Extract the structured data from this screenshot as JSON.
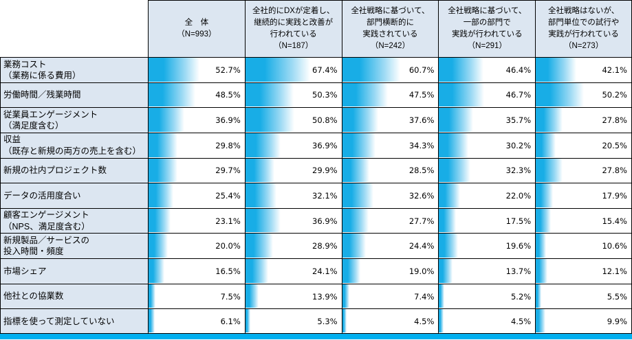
{
  "colors": {
    "header_bg": "#dce6f1",
    "border": "#000000",
    "bar_solid": "#18ade6",
    "bar_mid": "#9ddaf4",
    "bar_end": "#ffffff",
    "bottom_band": "#00b0f0"
  },
  "table": {
    "columns": [
      {
        "lines": [
          "全　体",
          "（N=993）"
        ]
      },
      {
        "lines": [
          "全社的にDXが定着し、",
          "継続的に実践と改善が",
          "行われている",
          "（N=187）"
        ]
      },
      {
        "lines": [
          "全社戦略に基づいて、",
          "部門横断的に",
          "実践されている",
          "（N=242）"
        ]
      },
      {
        "lines": [
          "全社戦略に基づいて、",
          "一部の部門で",
          "実践が行われている",
          "（N=291）"
        ]
      },
      {
        "lines": [
          "全社戦略はないが、",
          "部門単位での試行や",
          "実践が行われている",
          "（N=273）"
        ]
      }
    ],
    "rows": [
      {
        "label_lines": [
          "業務コスト",
          "（業務に係る費用）"
        ]
      },
      {
        "label_lines": [
          "労働時間／残業時間"
        ]
      },
      {
        "label_lines": [
          "従業員エンゲージメント",
          "（満足度含む）"
        ]
      },
      {
        "label_lines": [
          "収益",
          "（既存と新規の両方の売上を含む）"
        ]
      },
      {
        "label_lines": [
          "新規の社内プロジェクト数"
        ]
      },
      {
        "label_lines": [
          "データの活用度合い"
        ]
      },
      {
        "label_lines": [
          "顧客エンゲージメント",
          "（NPS、満足度含む）"
        ]
      },
      {
        "label_lines": [
          "新規製品／サービスの",
          "投入時間・頻度"
        ]
      },
      {
        "label_lines": [
          "市場シェア"
        ]
      },
      {
        "label_lines": [
          "他社との協業数"
        ]
      },
      {
        "label_lines": [
          "指標を使って測定していない"
        ]
      }
    ]
  },
  "chart_data": {
    "type": "bar",
    "orientation": "horizontal",
    "value_format": "percent",
    "xlim": [
      0,
      100
    ],
    "grid": false,
    "legend_position": "table-header",
    "categories": [
      "業務コスト（業務に係る費用）",
      "労働時間／残業時間",
      "従業員エンゲージメント（満足度含む）",
      "収益（既存と新規の両方の売上を含む）",
      "新規の社内プロジェクト数",
      "データの活用度合い",
      "顧客エンゲージメント（NPS、満足度含む）",
      "新規製品／サービスの投入時間・頻度",
      "市場シェア",
      "他社との協業数",
      "指標を使って測定していない"
    ],
    "series": [
      {
        "name": "全体（N=993）",
        "values": [
          52.7,
          48.5,
          36.9,
          29.8,
          29.7,
          25.4,
          23.1,
          20.0,
          16.5,
          7.5,
          6.1
        ]
      },
      {
        "name": "全社的にDXが定着し、継続的に実践と改善が行われている（N=187）",
        "values": [
          67.4,
          50.3,
          50.8,
          36.9,
          29.9,
          32.1,
          36.9,
          28.9,
          24.1,
          13.9,
          5.3
        ]
      },
      {
        "name": "全社戦略に基づいて、部門横断的に実践されている（N=242）",
        "values": [
          60.7,
          47.5,
          37.6,
          34.3,
          28.5,
          32.6,
          27.7,
          24.4,
          19.0,
          7.4,
          4.5
        ]
      },
      {
        "name": "全社戦略に基づいて、一部の部門で実践が行われている（N=291）",
        "values": [
          46.4,
          46.7,
          35.7,
          30.2,
          32.3,
          22.0,
          17.5,
          19.6,
          13.7,
          5.2,
          4.5
        ]
      },
      {
        "name": "全社戦略はないが、部門単位での試行や実践が行われている（N=273）",
        "values": [
          42.1,
          50.2,
          27.8,
          20.5,
          27.8,
          17.9,
          15.4,
          10.6,
          12.1,
          5.5,
          9.9
        ]
      }
    ]
  }
}
